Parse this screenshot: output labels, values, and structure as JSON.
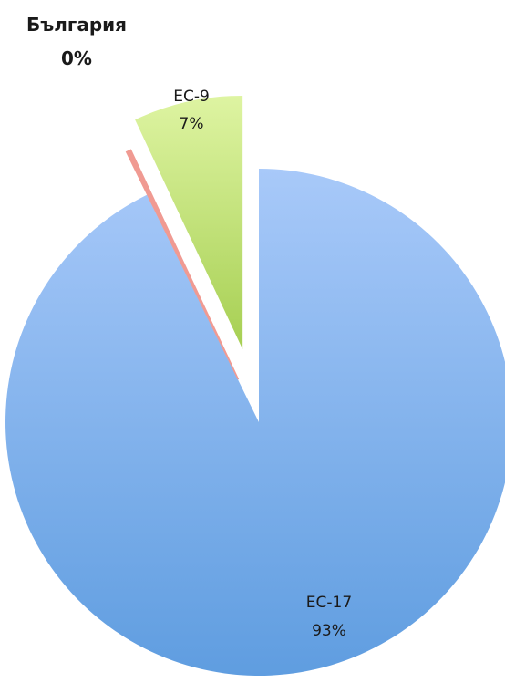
{
  "chart_data": {
    "type": "pie",
    "exploded": true,
    "legend": "none",
    "slices": [
      {
        "name": "ЕС-17",
        "value": 93,
        "label_value": "93%",
        "color_top": "#a8c9f9",
        "color_bottom": "#5f9de0"
      },
      {
        "name": "България",
        "value": 0.3,
        "label_value": "0%",
        "color": "#f09a92",
        "label_color": "#e8231d",
        "label_bold": true
      },
      {
        "name": "ЕС-9",
        "value": 7,
        "label_value": "7%",
        "color_top": "#def4a2",
        "color_bottom": "#a6cf52"
      }
    ]
  }
}
